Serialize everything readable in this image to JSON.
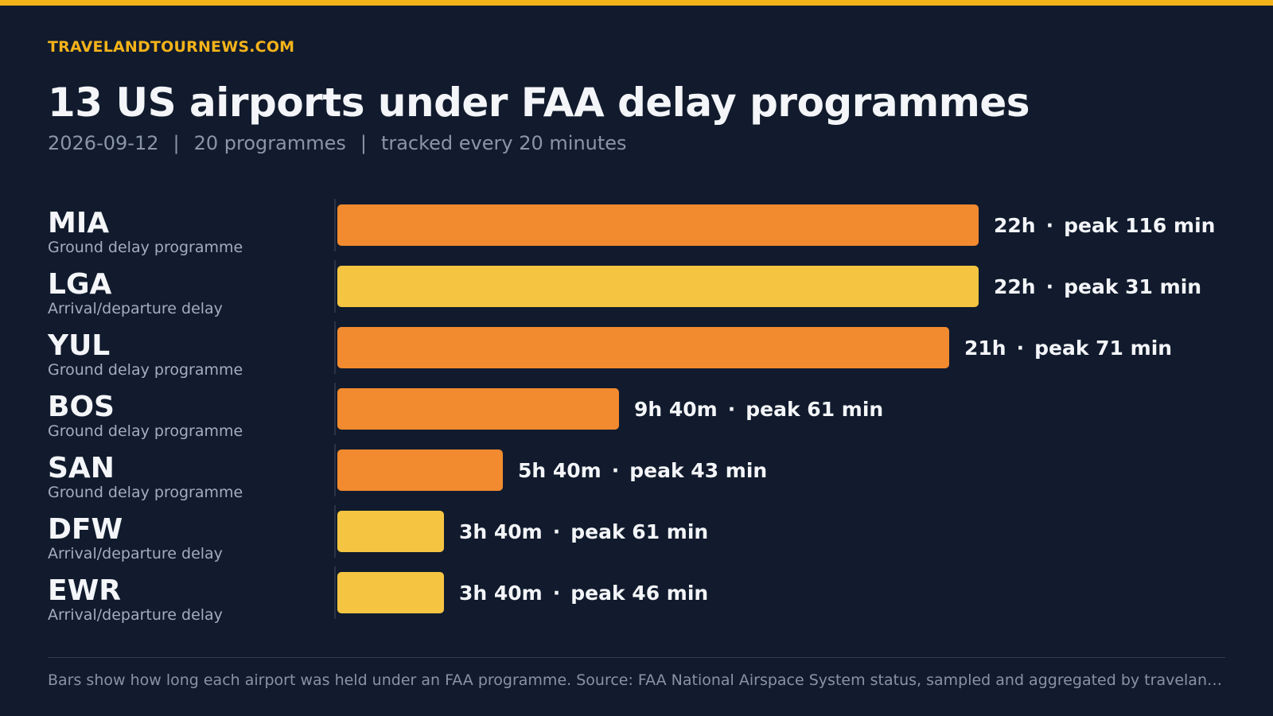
{
  "brand": "TRAVELANDTOURNEWS.COM",
  "title": "13 US airports under FAA delay programmes",
  "subtitle": {
    "date": "2026-09-12",
    "programmes": "20 programmes",
    "cadence": "tracked every 20 minutes",
    "separator": "|"
  },
  "colors": {
    "background": "#111b2d",
    "accent": "#f5b31a",
    "ground_delay": "#f28a30",
    "arrival_departure": "#f5c542"
  },
  "chart_data": {
    "type": "bar",
    "orientation": "horizontal",
    "unit": "hours",
    "xlim": [
      0,
      22
    ],
    "categories": [
      "MIA",
      "LGA",
      "YUL",
      "BOS",
      "SAN",
      "DFW",
      "EWR"
    ],
    "values": [
      22,
      22,
      21,
      9.667,
      5.667,
      3.667,
      3.667
    ],
    "rows": [
      {
        "code": "MIA",
        "kind": "Ground delay programme",
        "type": "ground",
        "hours": 22,
        "duration": "22h",
        "peak": "peak 116 min"
      },
      {
        "code": "LGA",
        "kind": "Arrival/departure delay",
        "type": "arrdep",
        "hours": 22,
        "duration": "22h",
        "peak": "peak 31 min"
      },
      {
        "code": "YUL",
        "kind": "Ground delay programme",
        "type": "ground",
        "hours": 21,
        "duration": "21h",
        "peak": "peak 71 min"
      },
      {
        "code": "BOS",
        "kind": "Ground delay programme",
        "type": "ground",
        "hours": 9.667,
        "duration": "9h 40m",
        "peak": "peak 61 min"
      },
      {
        "code": "SAN",
        "kind": "Ground delay programme",
        "type": "ground",
        "hours": 5.667,
        "duration": "5h 40m",
        "peak": "peak 43 min"
      },
      {
        "code": "DFW",
        "kind": "Arrival/departure delay",
        "type": "arrdep",
        "hours": 3.667,
        "duration": "3h 40m",
        "peak": "peak 61 min"
      },
      {
        "code": "EWR",
        "kind": "Arrival/departure delay",
        "type": "arrdep",
        "hours": 3.667,
        "duration": "3h 40m",
        "peak": "peak 46 min"
      }
    ],
    "value_separator": "·",
    "grid": false,
    "legend": "none"
  },
  "footnote": "Bars show how long each airport was held under an FAA programme. Source: FAA National Airspace System status, sampled and aggregated by travelandtournews.com."
}
